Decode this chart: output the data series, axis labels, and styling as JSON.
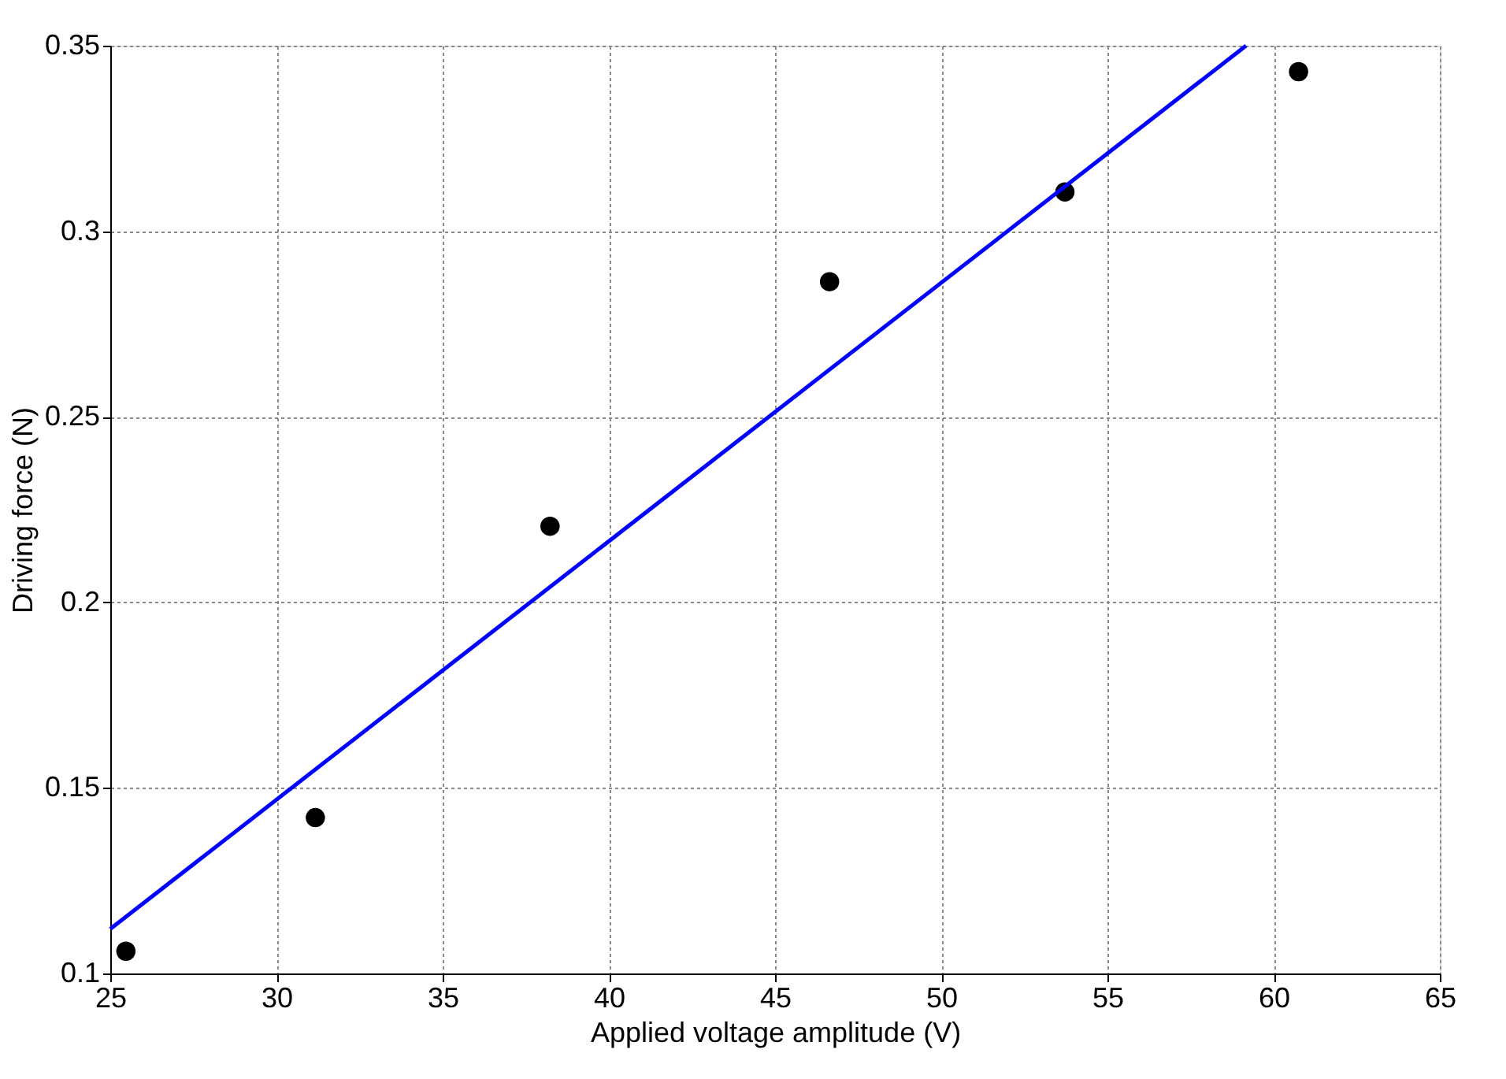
{
  "chart_data": {
    "type": "scatter",
    "xlabel": "Applied voltage amplitude (V)",
    "ylabel": "Driving force (N)",
    "xlim": [
      25,
      65
    ],
    "xticks": [
      25,
      30,
      35,
      40,
      45,
      50,
      55,
      60,
      65
    ],
    "ylim": [
      0.1,
      0.35
    ],
    "yticks": [
      0.1,
      0.15,
      0.2,
      0.25,
      0.3,
      0.35
    ],
    "grid": true,
    "series": [
      {
        "marker": "circle",
        "color": "#000000",
        "x": [
          25.47,
          31.17,
          38.23,
          46.64,
          53.72,
          60.75
        ],
        "values": [
          0.106,
          0.142,
          0.2205,
          0.2864,
          0.3106,
          0.343
        ]
      },
      {
        "type": "line",
        "color": "#0000ff",
        "line_style": "solid",
        "x": [
          25,
          59.17
        ],
        "values": [
          0.112,
          0.35
        ]
      }
    ]
  }
}
